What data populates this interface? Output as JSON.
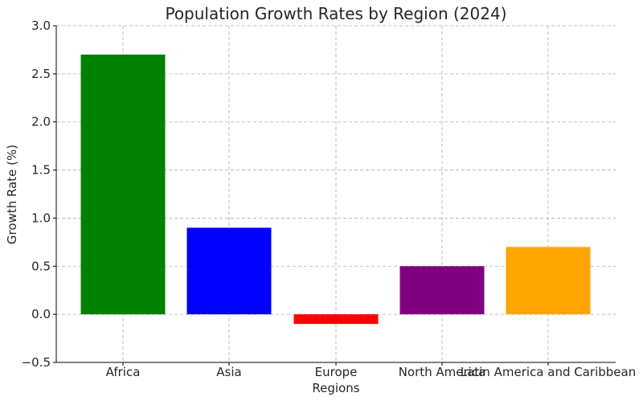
{
  "chart_data": {
    "type": "bar",
    "title": "Population Growth Rates by Region (2024)",
    "xlabel": "Regions",
    "ylabel": "Growth Rate (%)",
    "categories": [
      "Africa",
      "Asia",
      "Europe",
      "North America",
      "Latin America and Caribbean"
    ],
    "values": [
      2.7,
      0.9,
      -0.1,
      0.5,
      0.7
    ],
    "colors": [
      "#008000",
      "#0000ff",
      "#ff0000",
      "#800080",
      "#ffa500"
    ],
    "ylim": [
      -0.5,
      3.0
    ],
    "yticks": [
      -0.5,
      0.0,
      0.5,
      1.0,
      1.5,
      2.0,
      2.5,
      3.0
    ],
    "ytick_labels": [
      "−0.5",
      "0.0",
      "0.5",
      "1.0",
      "1.5",
      "2.0",
      "2.5",
      "3.0"
    ],
    "grid": true,
    "legend": "none"
  }
}
